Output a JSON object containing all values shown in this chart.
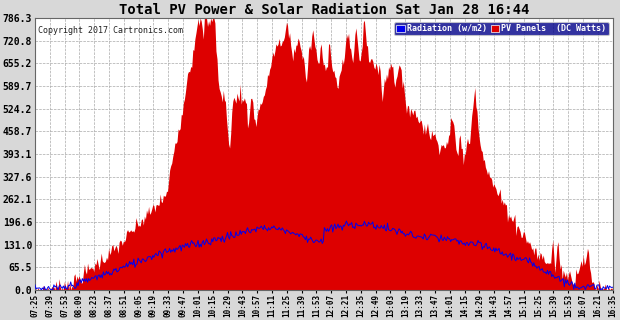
{
  "title": "Total PV Power & Solar Radiation Sat Jan 28 16:44",
  "copyright": "Copyright 2017 Cartronics.com",
  "legend_radiation": "Radiation (w/m2)",
  "legend_pv": "PV Panels  (DC Watts)",
  "yticks": [
    0.0,
    65.5,
    131.0,
    196.6,
    262.1,
    327.6,
    393.1,
    458.7,
    524.2,
    589.7,
    655.2,
    720.8,
    786.3
  ],
  "ymax": 786.3,
  "bg_color": "#d8d8d8",
  "plot_bg_color": "#ffffff",
  "grid_color": "#aaaaaa",
  "red_fill_color": "#dd0000",
  "blue_line_color": "#0000ee",
  "title_color": "#000000",
  "xtick_labels": [
    "07:25",
    "07:39",
    "07:53",
    "08:09",
    "08:23",
    "08:37",
    "08:51",
    "09:05",
    "09:19",
    "09:33",
    "09:47",
    "10:01",
    "10:15",
    "10:29",
    "10:43",
    "10:57",
    "11:11",
    "11:25",
    "11:39",
    "11:53",
    "12:07",
    "12:21",
    "12:35",
    "12:49",
    "13:03",
    "13:19",
    "13:33",
    "13:47",
    "14:01",
    "14:15",
    "14:29",
    "14:43",
    "14:57",
    "15:11",
    "15:25",
    "15:39",
    "15:53",
    "16:07",
    "16:21",
    "16:35"
  ]
}
